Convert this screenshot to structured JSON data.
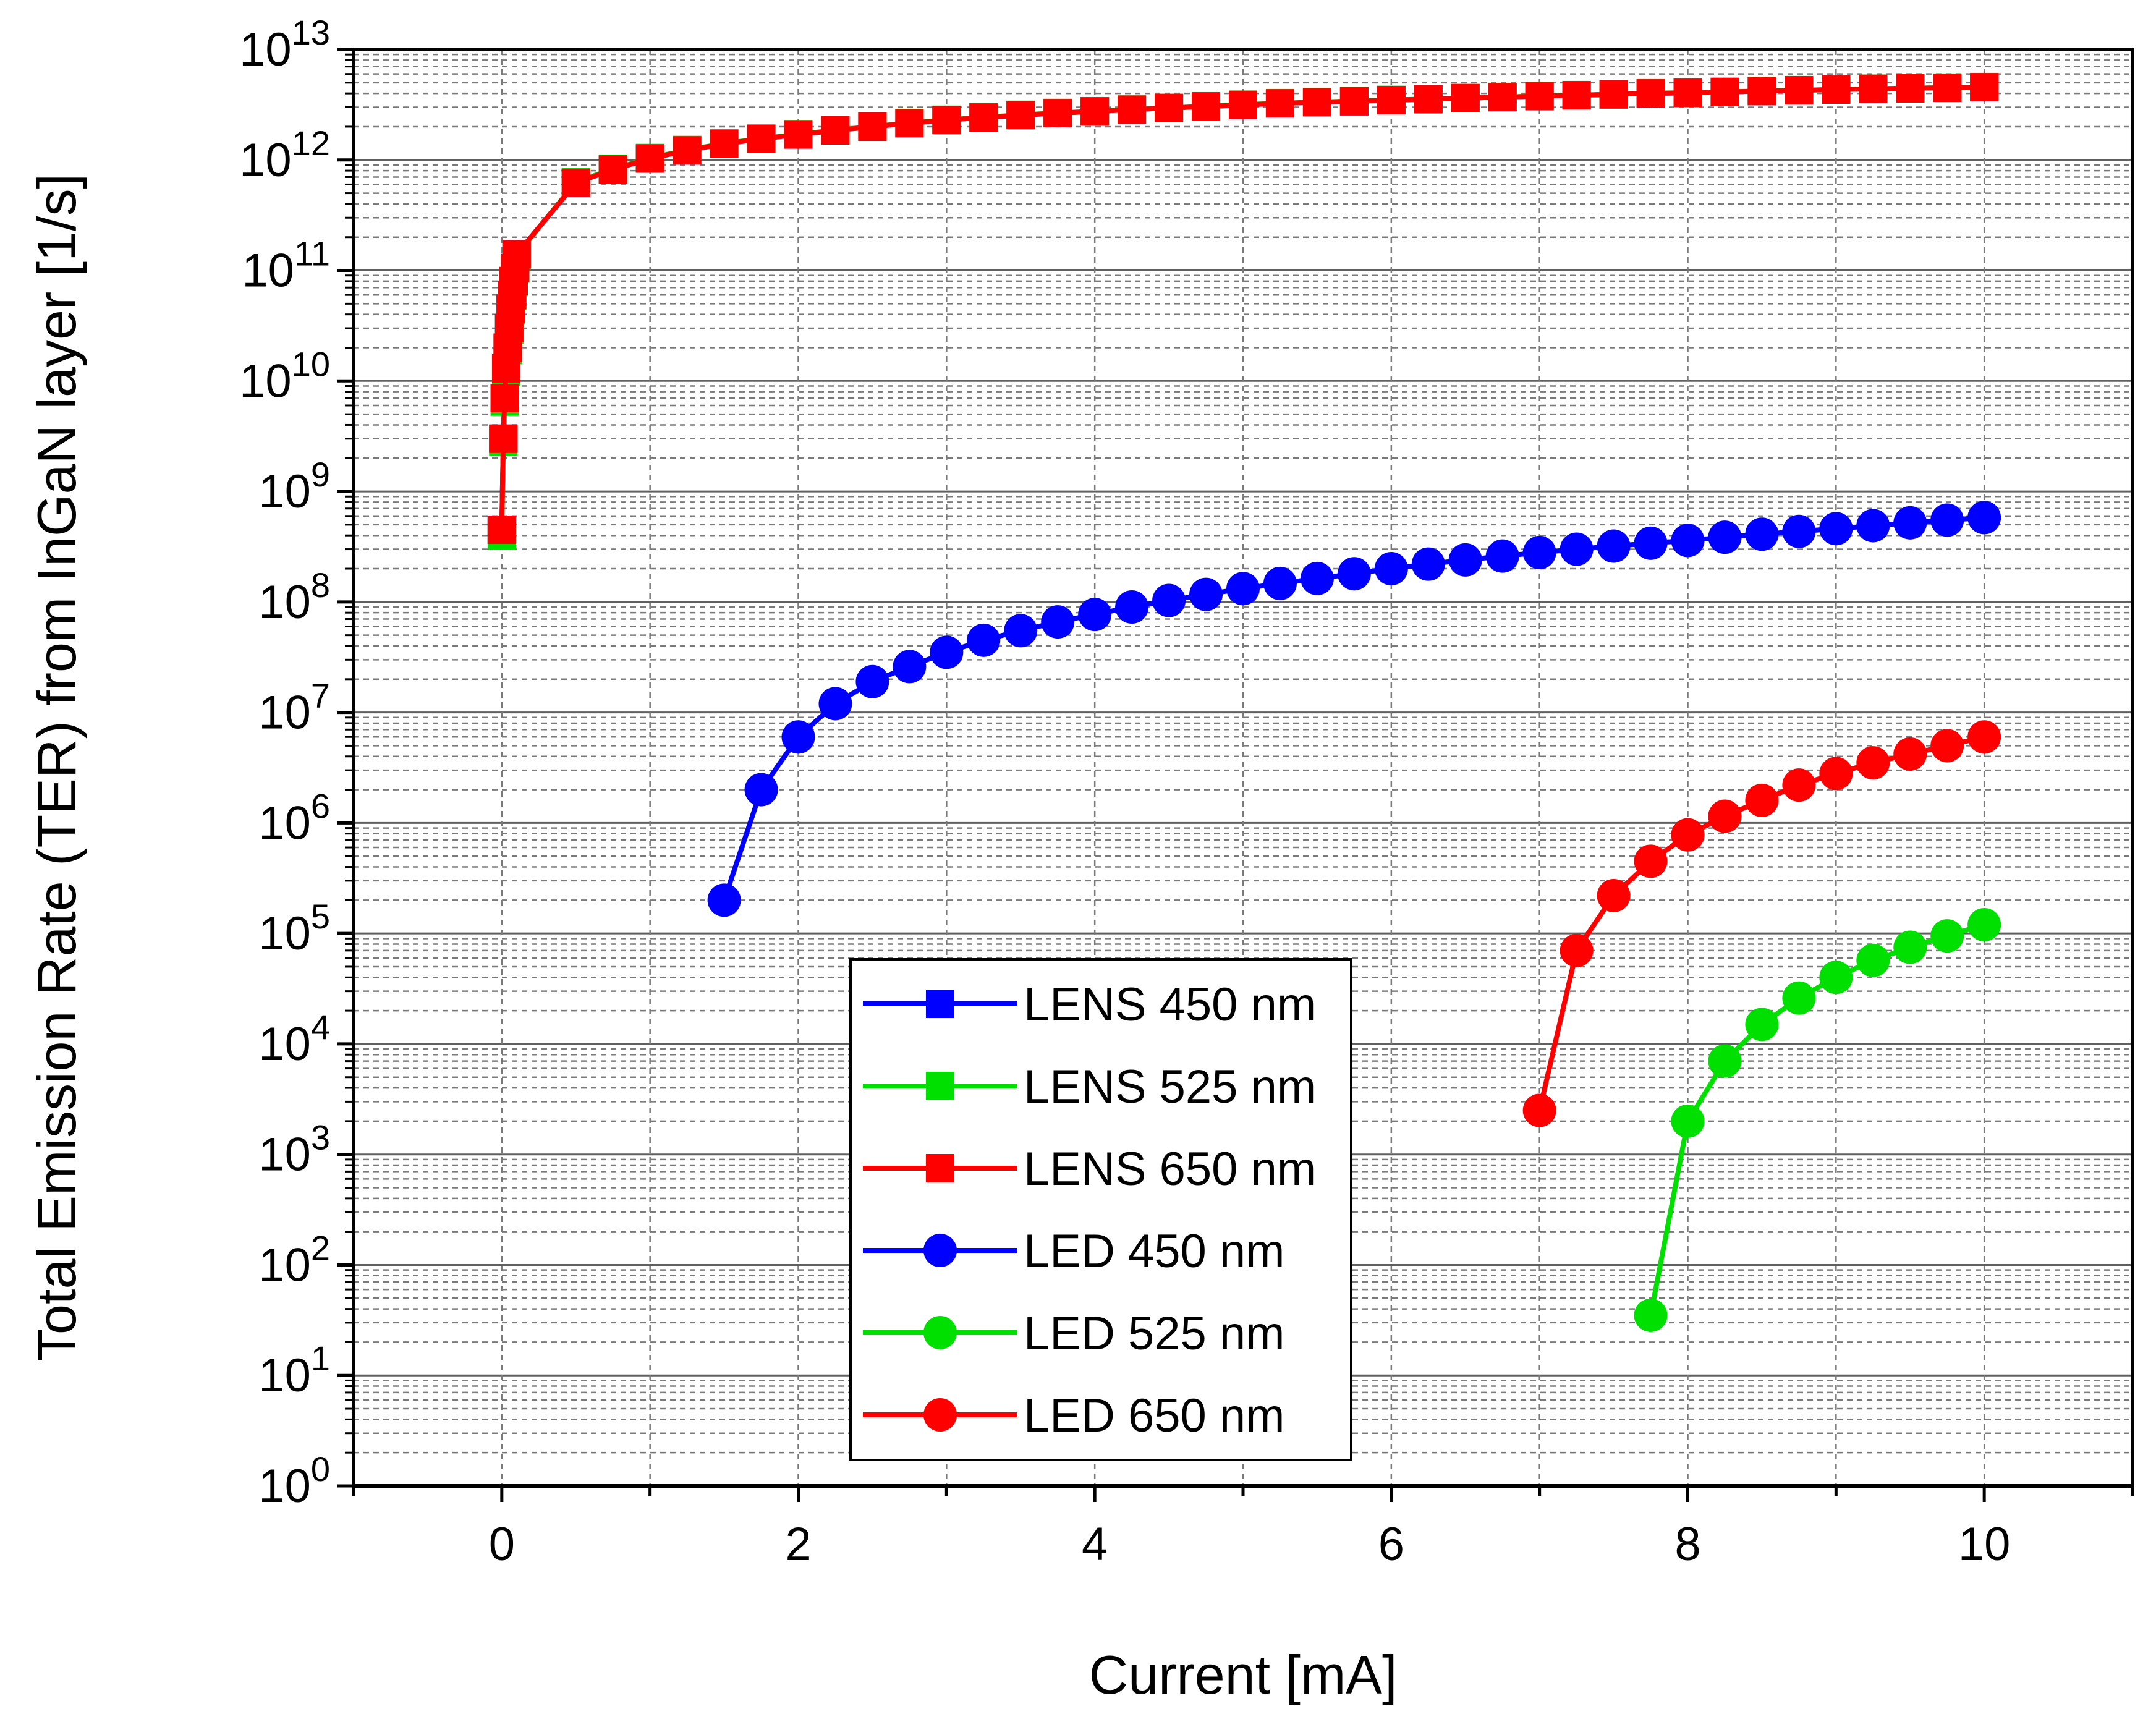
{
  "chart_data": {
    "type": "line",
    "title": "",
    "xlabel": "Current [mA]",
    "ylabel": "Total Emission Rate (TER) from InGaN layer [1/s]",
    "xlim": [
      -1,
      11
    ],
    "ylim": [
      1,
      10000000000000.0
    ],
    "yscale": "log",
    "x_ticks": [
      0,
      2,
      4,
      6,
      8,
      10
    ],
    "x_tick_labels": [
      "0",
      "2",
      "4",
      "6",
      "8",
      "10"
    ],
    "y_tick_exponents": [
      0,
      1,
      2,
      3,
      4,
      5,
      6,
      7,
      8,
      9,
      10,
      11,
      12,
      13
    ],
    "y_tick_base": "10",
    "grid": true,
    "legend_position": "bottom-center",
    "colors": {
      "blue": "#0000ff",
      "green": "#00e000",
      "red": "#ff0000"
    },
    "series": [
      {
        "name": "LENS 450 nm",
        "color": "#0000ff",
        "marker": "square",
        "x": [
          0,
          0.01,
          0.02,
          0.03,
          0.04,
          0.05,
          0.06,
          0.07,
          0.08,
          0.09,
          0.1,
          0.5,
          0.75,
          1,
          1.25,
          1.5,
          1.75,
          2,
          2.25,
          2.5,
          2.75,
          3,
          3.25,
          3.5,
          3.75,
          4,
          4.25,
          4.5,
          4.75,
          5,
          5.25,
          5.5,
          5.75,
          6,
          6.25,
          6.5,
          6.75,
          7,
          7.25,
          7.5,
          7.75,
          8,
          8.25,
          8.5,
          8.75,
          9,
          9.25,
          9.5,
          9.75,
          10
        ],
        "y": [
          450000000.0,
          3000000000.0,
          7000000000.0,
          13000000000.0,
          20000000000.0,
          30000000000.0,
          45000000000.0,
          60000000000.0,
          80000000000.0,
          105000000000.0,
          140000000000.0,
          620000000000.0,
          820000000000.0,
          1030000000000.0,
          1220000000000.0,
          1400000000000.0,
          1550000000000.0,
          1700000000000.0,
          1850000000000.0,
          2000000000000.0,
          2150000000000.0,
          2300000000000.0,
          2420000000000.0,
          2550000000000.0,
          2650000000000.0,
          2750000000000.0,
          2850000000000.0,
          2950000000000.0,
          3050000000000.0,
          3150000000000.0,
          3250000000000.0,
          3330000000000.0,
          3400000000000.0,
          3480000000000.0,
          3550000000000.0,
          3620000000000.0,
          3700000000000.0,
          3780000000000.0,
          3850000000000.0,
          3920000000000.0,
          4000000000000.0,
          4050000000000.0,
          4120000000000.0,
          4200000000000.0,
          4270000000000.0,
          4330000000000.0,
          4400000000000.0,
          4450000000000.0,
          4500000000000.0,
          4550000000000.0
        ]
      },
      {
        "name": "LENS 525 nm",
        "color": "#00e000",
        "marker": "square",
        "x": [
          0,
          0.01,
          0.02,
          0.03,
          0.04,
          0.05,
          0.06,
          0.07,
          0.08,
          0.09,
          0.1,
          0.5,
          0.75,
          1,
          1.25,
          1.5,
          1.75,
          2,
          2.25,
          2.5,
          2.75,
          3,
          3.25,
          3.5,
          3.75,
          4,
          4.25,
          4.5,
          4.75,
          5,
          5.25,
          5.5,
          5.75,
          6,
          6.25,
          6.5,
          6.75,
          7,
          7.25,
          7.5,
          7.75,
          8,
          8.25,
          8.5,
          8.75,
          9,
          9.25,
          9.5,
          9.75,
          10
        ],
        "y": [
          400000000.0,
          2800000000.0,
          6500000000.0,
          12000000000.0,
          19000000000.0,
          29000000000.0,
          44000000000.0,
          59000000000.0,
          79000000000.0,
          104000000000.0,
          138000000000.0,
          630000000000.0,
          830000000000.0,
          1040000000000.0,
          1230000000000.0,
          1410000000000.0,
          1560000000000.0,
          1710000000000.0,
          1860000000000.0,
          2010000000000.0,
          2160000000000.0,
          2310000000000.0,
          2430000000000.0,
          2560000000000.0,
          2660000000000.0,
          2760000000000.0,
          2860000000000.0,
          2960000000000.0,
          3060000000000.0,
          3160000000000.0,
          3260000000000.0,
          3340000000000.0,
          3410000000000.0,
          3490000000000.0,
          3560000000000.0,
          3630000000000.0,
          3710000000000.0,
          3790000000000.0,
          3860000000000.0,
          3930000000000.0,
          4010000000000.0,
          4060000000000.0,
          4130000000000.0,
          4210000000000.0,
          4280000000000.0,
          4340000000000.0,
          4410000000000.0,
          4460000000000.0,
          4510000000000.0,
          4560000000000.0
        ]
      },
      {
        "name": "LENS 650 nm",
        "color": "#ff0000",
        "marker": "square",
        "x": [
          0,
          0.01,
          0.02,
          0.03,
          0.04,
          0.05,
          0.06,
          0.07,
          0.08,
          0.09,
          0.1,
          0.5,
          0.75,
          1,
          1.25,
          1.5,
          1.75,
          2,
          2.25,
          2.5,
          2.75,
          3,
          3.25,
          3.5,
          3.75,
          4,
          4.25,
          4.5,
          4.75,
          5,
          5.25,
          5.5,
          5.75,
          6,
          6.25,
          6.5,
          6.75,
          7,
          7.25,
          7.5,
          7.75,
          8,
          8.25,
          8.5,
          8.75,
          9,
          9.25,
          9.5,
          9.75,
          10
        ],
        "y": [
          450000000.0,
          3000000000.0,
          7000000000.0,
          13000000000.0,
          20000000000.0,
          30000000000.0,
          45000000000.0,
          60000000000.0,
          80000000000.0,
          105000000000.0,
          140000000000.0,
          620000000000.0,
          820000000000.0,
          1030000000000.0,
          1220000000000.0,
          1400000000000.0,
          1550000000000.0,
          1700000000000.0,
          1850000000000.0,
          2000000000000.0,
          2150000000000.0,
          2300000000000.0,
          2420000000000.0,
          2550000000000.0,
          2650000000000.0,
          2750000000000.0,
          2850000000000.0,
          2950000000000.0,
          3050000000000.0,
          3150000000000.0,
          3250000000000.0,
          3330000000000.0,
          3400000000000.0,
          3480000000000.0,
          3550000000000.0,
          3620000000000.0,
          3700000000000.0,
          3780000000000.0,
          3850000000000.0,
          3920000000000.0,
          4000000000000.0,
          4050000000000.0,
          4120000000000.0,
          4200000000000.0,
          4270000000000.0,
          4330000000000.0,
          4400000000000.0,
          4450000000000.0,
          4500000000000.0,
          4550000000000.0
        ]
      },
      {
        "name": "LED 450 nm",
        "color": "#0000ff",
        "marker": "circle",
        "x": [
          1.5,
          1.75,
          2,
          2.25,
          2.5,
          2.75,
          3,
          3.25,
          3.5,
          3.75,
          4,
          4.25,
          4.5,
          4.75,
          5,
          5.25,
          5.5,
          5.75,
          6,
          6.25,
          6.5,
          6.75,
          7,
          7.25,
          7.5,
          7.75,
          8,
          8.25,
          8.5,
          8.75,
          9,
          9.25,
          9.5,
          9.75,
          10
        ],
        "y": [
          200000.0,
          2000000.0,
          6000000.0,
          12000000.0,
          19000000.0,
          26000000.0,
          35000000.0,
          45000000.0,
          55000000.0,
          66000000.0,
          77000000.0,
          90000000.0,
          103000000.0,
          117000000.0,
          132000000.0,
          147000000.0,
          163000000.0,
          180000000.0,
          200000000.0,
          220000000.0,
          240000000.0,
          260000000.0,
          280000000.0,
          300000000.0,
          320000000.0,
          340000000.0,
          360000000.0,
          385000000.0,
          410000000.0,
          435000000.0,
          460000000.0,
          490000000.0,
          520000000.0,
          550000000.0,
          580000000.0
        ]
      },
      {
        "name": "LED 525 nm",
        "color": "#00e000",
        "marker": "circle",
        "x": [
          7.75,
          8,
          8.25,
          8.5,
          8.75,
          9,
          9.25,
          9.5,
          9.75,
          10
        ],
        "y": [
          35,
          2000,
          7000,
          15000,
          26000,
          40000,
          57000,
          75000,
          95000,
          120000
        ]
      },
      {
        "name": "LED 650 nm",
        "color": "#ff0000",
        "marker": "circle",
        "x": [
          7,
          7.25,
          7.5,
          7.75,
          8,
          8.25,
          8.5,
          8.75,
          9,
          9.25,
          9.5,
          9.75,
          10
        ],
        "y": [
          2500,
          70000,
          220000,
          450000,
          780000,
          1150000,
          1600000,
          2200000,
          2800000,
          3500000,
          4200000,
          5000000,
          6000000
        ]
      }
    ]
  }
}
